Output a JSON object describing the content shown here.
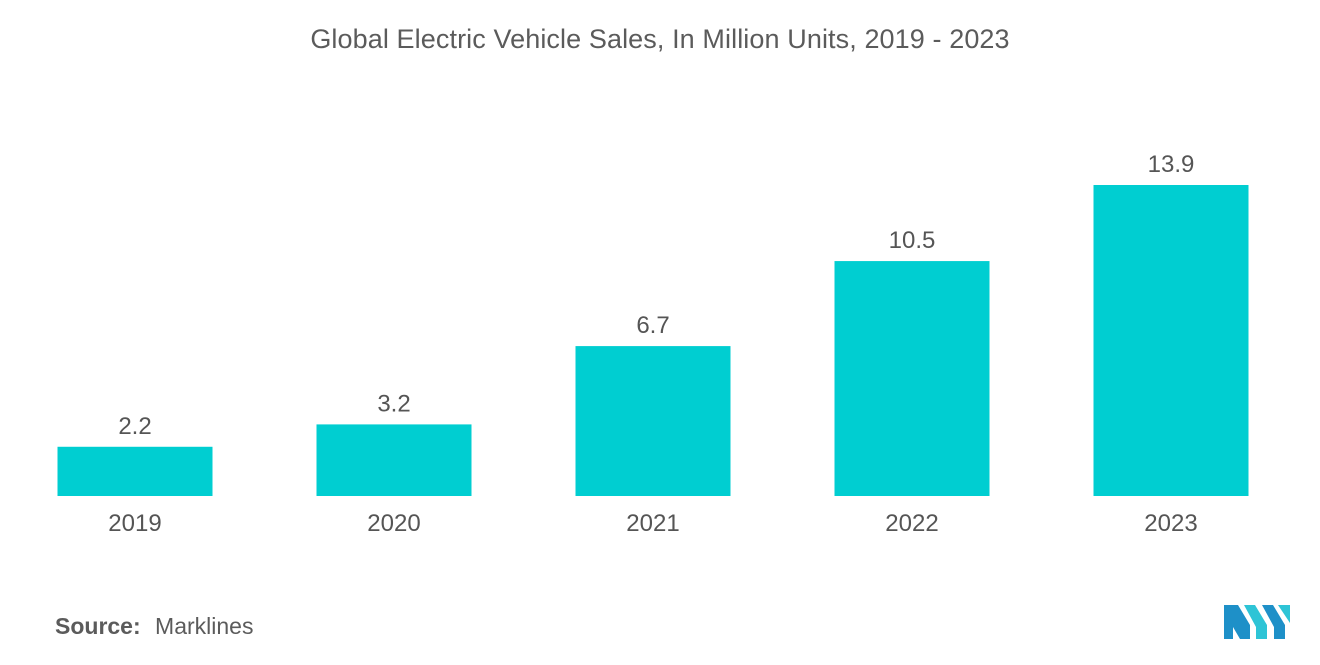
{
  "chart_data": {
    "type": "bar",
    "title": "Global Electric Vehicle Sales, In Million Units, 2019 - 2023",
    "categories": [
      "2019",
      "2020",
      "2021",
      "2022",
      "2023"
    ],
    "values": [
      2.2,
      3.2,
      6.7,
      10.5,
      13.9
    ],
    "data_labels": [
      "2.2",
      "3.2",
      "6.7",
      "10.5",
      "13.9"
    ],
    "xlabel": "",
    "ylabel": "",
    "ylim": [
      0,
      13.9
    ],
    "grid": false,
    "legend": "none",
    "bar_color": "#00CED1"
  },
  "source": {
    "label": "Source:",
    "value": "Marklines"
  },
  "logo": {
    "icon": "mordor-intelligence-logo-icon",
    "colors": [
      "#1E90C8",
      "#2EC4D6"
    ]
  }
}
